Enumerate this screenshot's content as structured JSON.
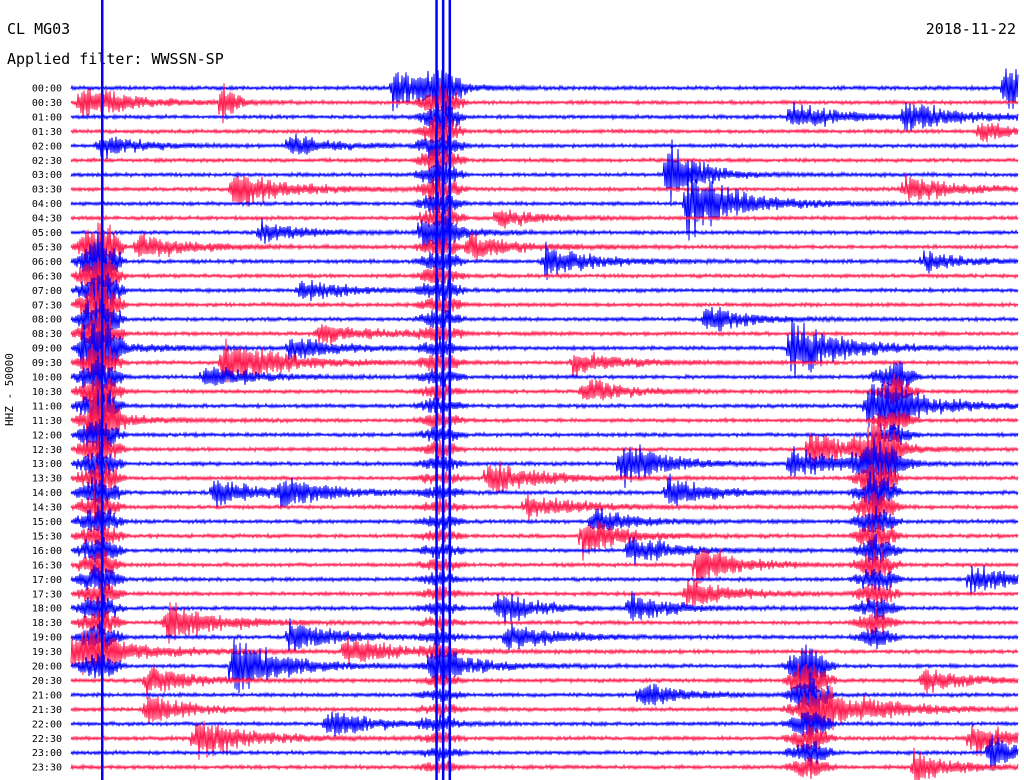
{
  "header": {
    "station": "CL MG03",
    "date": "2018-11-22",
    "filter": "Applied filter: WWSSN-SP"
  },
  "colors": {
    "trace_a": "#0000ff",
    "trace_b": "#ff1a4d",
    "background": "#ffffff"
  },
  "chart_data": {
    "type": "line",
    "title": "",
    "xlabel": "",
    "ylabel": "HHZ - 50000",
    "row_interval_minutes": 30,
    "row_labels": [
      "00:00",
      "00:30",
      "01:00",
      "01:30",
      "02:00",
      "02:30",
      "03:00",
      "03:30",
      "04:00",
      "04:30",
      "05:00",
      "05:30",
      "06:00",
      "06:30",
      "07:00",
      "07:30",
      "08:00",
      "08:30",
      "09:00",
      "09:30",
      "10:00",
      "10:30",
      "11:00",
      "11:30",
      "12:00",
      "12:30",
      "13:00",
      "13:30",
      "14:00",
      "14:30",
      "15:00",
      "15:30",
      "16:00",
      "16:30",
      "17:00",
      "17:30",
      "18:00",
      "18:30",
      "19:00",
      "19:30",
      "20:00",
      "20:30",
      "21:00",
      "21:30",
      "22:00",
      "22:30",
      "23:00",
      "23:30"
    ],
    "series_color_cycle": [
      "#0000ff",
      "#ff1a4d"
    ],
    "events": [
      {
        "row": 0,
        "x": 0.34,
        "amp": 1.8,
        "dur": 0.04
      },
      {
        "row": 0,
        "x": 0.985,
        "amp": 1.8,
        "dur": 0.04
      },
      {
        "row": 1,
        "x": 0.01,
        "amp": 1.4,
        "dur": 0.05
      },
      {
        "row": 1,
        "x": 0.16,
        "amp": 2.5,
        "dur": 0.01
      },
      {
        "row": 2,
        "x": 0.76,
        "amp": 1.2,
        "dur": 0.05
      },
      {
        "row": 2,
        "x": 0.88,
        "amp": 1.1,
        "dur": 0.06
      },
      {
        "row": 3,
        "x": 0.96,
        "amp": 1.0,
        "dur": 0.03
      },
      {
        "row": 4,
        "x": 0.03,
        "amp": 1.0,
        "dur": 0.04
      },
      {
        "row": 4,
        "x": 0.23,
        "amp": 1.0,
        "dur": 0.04
      },
      {
        "row": 6,
        "x": 0.63,
        "amp": 3.0,
        "dur": 0.03
      },
      {
        "row": 7,
        "x": 0.17,
        "amp": 1.8,
        "dur": 0.05
      },
      {
        "row": 7,
        "x": 0.88,
        "amp": 1.2,
        "dur": 0.05
      },
      {
        "row": 8,
        "x": 0.65,
        "amp": 3.0,
        "dur": 0.05
      },
      {
        "row": 9,
        "x": 0.45,
        "amp": 1.0,
        "dur": 0.04
      },
      {
        "row": 10,
        "x": 0.2,
        "amp": 1.0,
        "dur": 0.04
      },
      {
        "row": 10,
        "x": 0.37,
        "amp": 1.0,
        "dur": 0.04
      },
      {
        "row": 11,
        "x": 0.07,
        "amp": 1.2,
        "dur": 0.05
      },
      {
        "row": 11,
        "x": 0.42,
        "amp": 1.1,
        "dur": 0.05
      },
      {
        "row": 12,
        "x": 0.5,
        "amp": 1.3,
        "dur": 0.05
      },
      {
        "row": 12,
        "x": 0.9,
        "amp": 0.9,
        "dur": 0.04
      },
      {
        "row": 14,
        "x": 0.24,
        "amp": 1.0,
        "dur": 0.05
      },
      {
        "row": 16,
        "x": 0.67,
        "amp": 1.3,
        "dur": 0.04
      },
      {
        "row": 17,
        "x": 0.26,
        "amp": 1.0,
        "dur": 0.05
      },
      {
        "row": 18,
        "x": 0.01,
        "amp": 1.2,
        "dur": 0.05
      },
      {
        "row": 18,
        "x": 0.23,
        "amp": 1.0,
        "dur": 0.05
      },
      {
        "row": 18,
        "x": 0.76,
        "amp": 2.5,
        "dur": 0.05
      },
      {
        "row": 19,
        "x": 0.16,
        "amp": 2.0,
        "dur": 0.06
      },
      {
        "row": 19,
        "x": 0.53,
        "amp": 1.0,
        "dur": 0.05
      },
      {
        "row": 20,
        "x": 0.14,
        "amp": 1.0,
        "dur": 0.05
      },
      {
        "row": 21,
        "x": 0.54,
        "amp": 1.2,
        "dur": 0.04
      },
      {
        "row": 22,
        "x": 0.84,
        "amp": 2.0,
        "dur": 0.06
      },
      {
        "row": 23,
        "x": 0.02,
        "amp": 1.2,
        "dur": 0.04
      },
      {
        "row": 25,
        "x": 0.78,
        "amp": 1.5,
        "dur": 0.05
      },
      {
        "row": 26,
        "x": 0.58,
        "amp": 2.2,
        "dur": 0.04
      },
      {
        "row": 26,
        "x": 0.76,
        "amp": 1.4,
        "dur": 0.05
      },
      {
        "row": 27,
        "x": 0.44,
        "amp": 1.5,
        "dur": 0.05
      },
      {
        "row": 28,
        "x": 0.15,
        "amp": 1.2,
        "dur": 0.05
      },
      {
        "row": 28,
        "x": 0.22,
        "amp": 1.1,
        "dur": 0.05
      },
      {
        "row": 28,
        "x": 0.63,
        "amp": 1.5,
        "dur": 0.04
      },
      {
        "row": 29,
        "x": 0.48,
        "amp": 1.2,
        "dur": 0.05
      },
      {
        "row": 30,
        "x": 0.55,
        "amp": 1.2,
        "dur": 0.04
      },
      {
        "row": 31,
        "x": 0.54,
        "amp": 1.8,
        "dur": 0.04
      },
      {
        "row": 32,
        "x": 0.59,
        "amp": 1.5,
        "dur": 0.04
      },
      {
        "row": 33,
        "x": 0.66,
        "amp": 2.0,
        "dur": 0.04
      },
      {
        "row": 34,
        "x": 0.95,
        "amp": 1.3,
        "dur": 0.04
      },
      {
        "row": 35,
        "x": 0.65,
        "amp": 1.2,
        "dur": 0.05
      },
      {
        "row": 36,
        "x": 0.45,
        "amp": 1.5,
        "dur": 0.04
      },
      {
        "row": 36,
        "x": 0.59,
        "amp": 1.3,
        "dur": 0.04
      },
      {
        "row": 37,
        "x": 0.1,
        "amp": 1.8,
        "dur": 0.05
      },
      {
        "row": 38,
        "x": 0.23,
        "amp": 1.3,
        "dur": 0.05
      },
      {
        "row": 38,
        "x": 0.46,
        "amp": 1.2,
        "dur": 0.05
      },
      {
        "row": 39,
        "x": 0.0,
        "amp": 1.5,
        "dur": 0.07
      },
      {
        "row": 39,
        "x": 0.29,
        "amp": 1.2,
        "dur": 0.05
      },
      {
        "row": 40,
        "x": 0.17,
        "amp": 2.5,
        "dur": 0.05
      },
      {
        "row": 40,
        "x": 0.38,
        "amp": 1.3,
        "dur": 0.05
      },
      {
        "row": 41,
        "x": 0.08,
        "amp": 1.3,
        "dur": 0.04
      },
      {
        "row": 41,
        "x": 0.9,
        "amp": 1.3,
        "dur": 0.04
      },
      {
        "row": 42,
        "x": 0.6,
        "amp": 1.2,
        "dur": 0.04
      },
      {
        "row": 43,
        "x": 0.08,
        "amp": 1.4,
        "dur": 0.04
      },
      {
        "row": 43,
        "x": 0.79,
        "amp": 2.0,
        "dur": 0.06
      },
      {
        "row": 44,
        "x": 0.27,
        "amp": 1.2,
        "dur": 0.05
      },
      {
        "row": 45,
        "x": 0.13,
        "amp": 2.0,
        "dur": 0.05
      },
      {
        "row": 45,
        "x": 0.95,
        "amp": 1.5,
        "dur": 0.04
      },
      {
        "row": 46,
        "x": 0.97,
        "amp": 1.6,
        "dur": 0.03
      },
      {
        "row": 47,
        "x": 0.89,
        "amp": 1.4,
        "dur": 0.04
      }
    ],
    "long_events": [
      {
        "start_row": 11,
        "end_row": 40,
        "x": 0.03,
        "amp": 2.4,
        "decay_rows": 20
      },
      {
        "start_row": 0,
        "end_row": 47,
        "x": 0.39,
        "amp": 1.6,
        "decay_rows": 14
      },
      {
        "start_row": 25,
        "end_row": 38,
        "x": 0.85,
        "amp": 2.2,
        "decay_rows": 8
      },
      {
        "start_row": 20,
        "end_row": 26,
        "x": 0.87,
        "amp": 1.5,
        "decay_rows": 4
      },
      {
        "start_row": 40,
        "end_row": 47,
        "x": 0.78,
        "amp": 2.2,
        "decay_rows": 5
      }
    ],
    "spikes": [
      {
        "x": 0.033,
        "row_from": 0,
        "row_to": 47
      },
      {
        "x": 0.386,
        "row_from": 0,
        "row_to": 47
      },
      {
        "x": 0.393,
        "row_from": 0,
        "row_to": 47
      },
      {
        "x": 0.4,
        "row_from": 0,
        "row_to": 47
      }
    ]
  }
}
